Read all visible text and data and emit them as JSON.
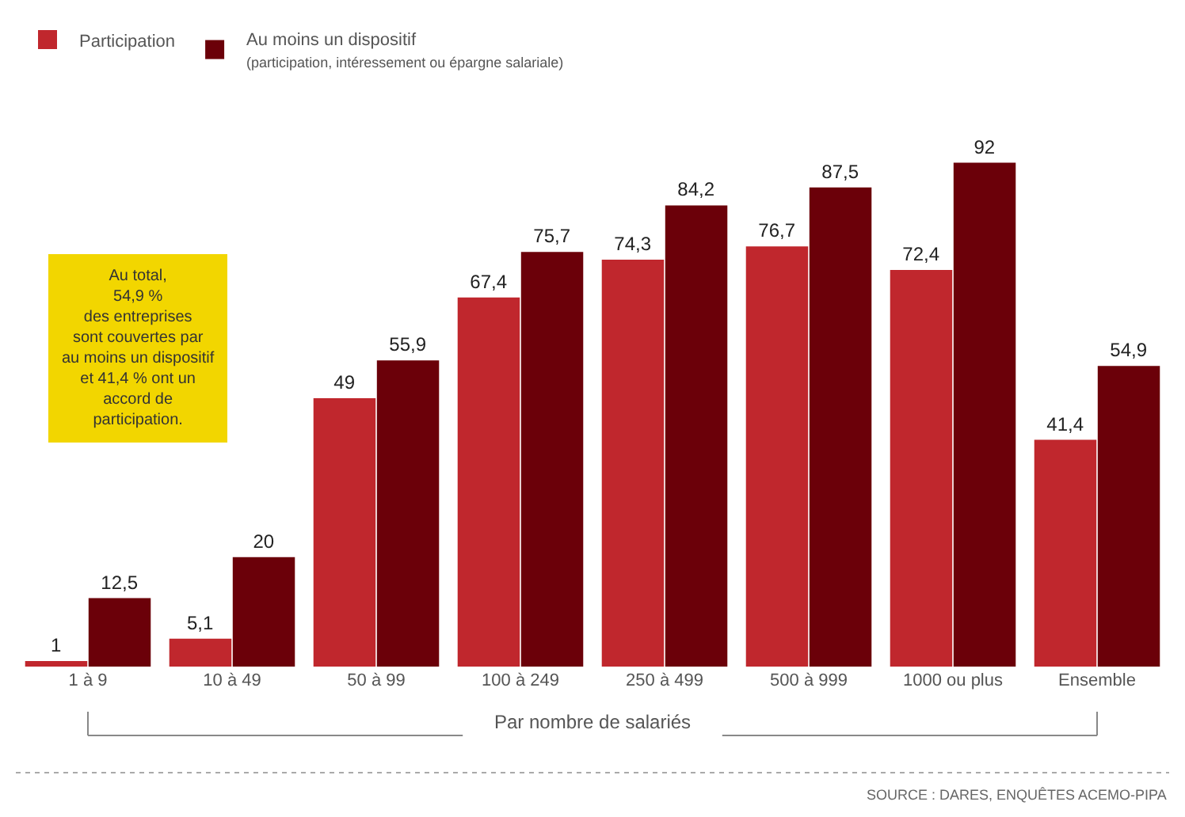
{
  "chart_data": {
    "type": "bar",
    "categories": [
      "1 à 9",
      "10 à 49",
      "50 à 99",
      "100 à 249",
      "250 à 499",
      "500 à 999",
      "1000 ou plus",
      "Ensemble"
    ],
    "series": [
      {
        "name": "Participation",
        "color": "#c0272d",
        "values": [
          1,
          5.1,
          49,
          67.4,
          74.3,
          76.7,
          72.4,
          41.4
        ],
        "value_labels": [
          "1",
          "5,1",
          "49",
          "67,4",
          "74,3",
          "76,7",
          "72,4",
          "41,4"
        ]
      },
      {
        "name": "Au moins un dispositif\n(participation, intéressement ou épargne salariale)",
        "color": "#6b0009",
        "values": [
          12.5,
          20,
          55.9,
          75.7,
          84.2,
          87.5,
          92,
          54.9
        ],
        "value_labels": [
          "12,5",
          "20",
          "55,9",
          "75,7",
          "84,2",
          "87,5",
          "92",
          "54,9"
        ]
      }
    ],
    "legend": "top left",
    "tick_labels": "x",
    "annotations": [
      "Au total,\n54,9 %\ndes entreprises\nsont couvertes par\nau moins un dispositif\net 41,4 % ont un\naccord de\nparticipation.",
      "Par nombre de salariés",
      "SOURCE : DARES, ENQUÊTES ACEMO-PIPA"
    ]
  }
}
